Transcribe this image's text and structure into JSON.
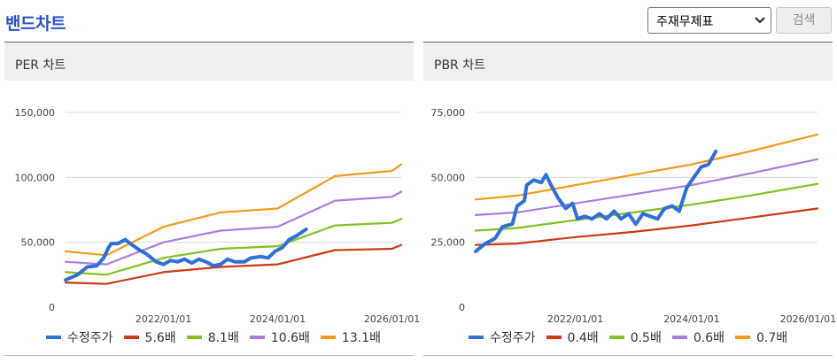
{
  "header": {
    "title": "밴드차트",
    "select_value": "주재무제표",
    "search_label": "검색"
  },
  "panels": [
    {
      "title": "PER 차트"
    },
    {
      "title": "PBR 차트"
    }
  ],
  "colors": {
    "price": "#2f6fd6",
    "band1": "#cc3a0e",
    "band2": "#80c21f",
    "band3": "#a97de0",
    "band4": "#f59a1b",
    "grid": "#dcdcdc",
    "title": "#2a52c8"
  },
  "chart_data": [
    {
      "type": "line",
      "title": "PER 차트",
      "x_ticks": [
        "2022/01/01",
        "2024/01/01",
        "2026/01/01"
      ],
      "y_ticks": [
        "150,000",
        "100,000",
        "50,000",
        "0"
      ],
      "ylim": [
        0,
        150000
      ],
      "xlim": [
        "2020-04-15",
        "2026-03-01"
      ],
      "grid": "horizontal",
      "legend": "bottom",
      "series": [
        {
          "name": "수정주가",
          "color_key": "price",
          "points": [
            [
              "2020-04-15",
              21000
            ],
            [
              "2020-07-01",
              25000
            ],
            [
              "2020-09-01",
              31000
            ],
            [
              "2020-11-01",
              32000
            ],
            [
              "2020-12-15",
              38000
            ],
            [
              "2021-01-15",
              46000
            ],
            [
              "2021-02-01",
              49000
            ],
            [
              "2021-03-15",
              49000
            ],
            [
              "2021-05-01",
              52000
            ],
            [
              "2021-06-15",
              48000
            ],
            [
              "2021-08-01",
              44000
            ],
            [
              "2021-09-15",
              41000
            ],
            [
              "2021-10-15",
              38000
            ],
            [
              "2021-11-15",
              35000
            ],
            [
              "2022-01-01",
              33000
            ],
            [
              "2022-02-15",
              36000
            ],
            [
              "2022-04-01",
              35000
            ],
            [
              "2022-05-15",
              37000
            ],
            [
              "2022-07-01",
              34000
            ],
            [
              "2022-08-15",
              37000
            ],
            [
              "2022-10-01",
              35000
            ],
            [
              "2022-11-15",
              32000
            ],
            [
              "2023-01-01",
              33000
            ],
            [
              "2023-02-15",
              37000
            ],
            [
              "2023-04-01",
              35000
            ],
            [
              "2023-06-01",
              35000
            ],
            [
              "2023-07-15",
              38000
            ],
            [
              "2023-09-15",
              39000
            ],
            [
              "2023-11-01",
              38000
            ],
            [
              "2023-12-15",
              43000
            ],
            [
              "2024-02-01",
              46000
            ],
            [
              "2024-03-15",
              52000
            ],
            [
              "2024-05-01",
              55000
            ],
            [
              "2024-07-01",
              60000
            ]
          ]
        },
        {
          "name": "5.6배",
          "color_key": "band1",
          "points": [
            [
              "2020-04-15",
              19000
            ],
            [
              "2021-01-01",
              18000
            ],
            [
              "2022-01-01",
              27000
            ],
            [
              "2023-01-01",
              31000
            ],
            [
              "2024-01-01",
              33000
            ],
            [
              "2025-01-01",
              44000
            ],
            [
              "2026-01-01",
              45000
            ],
            [
              "2026-03-01",
              48000
            ]
          ]
        },
        {
          "name": "8.1배",
          "color_key": "band2",
          "points": [
            [
              "2020-04-15",
              27000
            ],
            [
              "2021-01-01",
              25000
            ],
            [
              "2022-01-01",
              38000
            ],
            [
              "2023-01-01",
              45000
            ],
            [
              "2024-01-01",
              47000
            ],
            [
              "2025-01-01",
              63000
            ],
            [
              "2026-01-01",
              65000
            ],
            [
              "2026-03-01",
              68000
            ]
          ]
        },
        {
          "name": "10.6배",
          "color_key": "band3",
          "points": [
            [
              "2020-04-15",
              35000
            ],
            [
              "2021-01-01",
              33000
            ],
            [
              "2022-01-01",
              50000
            ],
            [
              "2023-01-01",
              59000
            ],
            [
              "2024-01-01",
              62000
            ],
            [
              "2025-01-01",
              82000
            ],
            [
              "2026-01-01",
              85000
            ],
            [
              "2026-03-01",
              89000
            ]
          ]
        },
        {
          "name": "13.1배",
          "color_key": "band4",
          "points": [
            [
              "2020-04-15",
              43000
            ],
            [
              "2021-01-01",
              40000
            ],
            [
              "2022-01-01",
              62000
            ],
            [
              "2023-01-01",
              73000
            ],
            [
              "2024-01-01",
              76000
            ],
            [
              "2025-01-01",
              101000
            ],
            [
              "2026-01-01",
              105000
            ],
            [
              "2026-03-01",
              110000
            ]
          ]
        }
      ]
    },
    {
      "type": "line",
      "title": "PBR 차트",
      "x_ticks": [
        "2022/01/01",
        "2024/01/01",
        "2026/01/01"
      ],
      "y_ticks": [
        "75,000",
        "50,000",
        "25,000",
        "0"
      ],
      "ylim": [
        0,
        75000
      ],
      "xlim": [
        "2020-04-15",
        "2026-03-01"
      ],
      "grid": "horizontal",
      "legend": "bottom",
      "series": [
        {
          "name": "수정주가",
          "color_key": "price",
          "points": [
            [
              "2020-04-15",
              21500
            ],
            [
              "2020-06-15",
              24500
            ],
            [
              "2020-08-15",
              26500
            ],
            [
              "2020-10-01",
              31000
            ],
            [
              "2020-12-01",
              32000
            ],
            [
              "2021-01-01",
              39000
            ],
            [
              "2021-02-15",
              41000
            ],
            [
              "2021-03-01",
              47000
            ],
            [
              "2021-04-15",
              49000
            ],
            [
              "2021-06-01",
              48000
            ],
            [
              "2021-07-01",
              51000
            ],
            [
              "2021-08-01",
              47000
            ],
            [
              "2021-09-15",
              42000
            ],
            [
              "2021-11-01",
              38000
            ],
            [
              "2021-12-15",
              40000
            ],
            [
              "2022-01-15",
              34000
            ],
            [
              "2022-03-01",
              35000
            ],
            [
              "2022-04-15",
              34000
            ],
            [
              "2022-06-01",
              36000
            ],
            [
              "2022-07-15",
              34000
            ],
            [
              "2022-09-01",
              37000
            ],
            [
              "2022-10-15",
              34000
            ],
            [
              "2022-12-01",
              36000
            ],
            [
              "2023-01-15",
              32000
            ],
            [
              "2023-03-01",
              36000
            ],
            [
              "2023-04-15",
              35000
            ],
            [
              "2023-06-01",
              34000
            ],
            [
              "2023-07-15",
              38000
            ],
            [
              "2023-09-01",
              39000
            ],
            [
              "2023-10-15",
              37000
            ],
            [
              "2023-12-01",
              46000
            ],
            [
              "2024-01-15",
              50000
            ],
            [
              "2024-03-01",
              54000
            ],
            [
              "2024-04-15",
              55000
            ],
            [
              "2024-06-01",
              60000
            ]
          ]
        },
        {
          "name": "0.4배",
          "color_key": "band1",
          "points": [
            [
              "2020-04-15",
              24000
            ],
            [
              "2021-01-01",
              24500
            ],
            [
              "2022-01-01",
              27000
            ],
            [
              "2023-01-01",
              29000
            ],
            [
              "2024-01-01",
              31500
            ],
            [
              "2025-01-01",
              34500
            ],
            [
              "2026-03-01",
              38000
            ]
          ]
        },
        {
          "name": "0.5배",
          "color_key": "band2",
          "points": [
            [
              "2020-04-15",
              29500
            ],
            [
              "2021-01-01",
              30500
            ],
            [
              "2022-01-01",
              33500
            ],
            [
              "2023-01-01",
              36500
            ],
            [
              "2024-01-01",
              39500
            ],
            [
              "2025-01-01",
              43000
            ],
            [
              "2026-03-01",
              47500
            ]
          ]
        },
        {
          "name": "0.6배",
          "color_key": "band3",
          "points": [
            [
              "2020-04-15",
              35500
            ],
            [
              "2021-01-01",
              36500
            ],
            [
              "2022-01-01",
              40000
            ],
            [
              "2023-01-01",
              43500
            ],
            [
              "2024-01-01",
              47000
            ],
            [
              "2025-01-01",
              51500
            ],
            [
              "2026-03-01",
              57000
            ]
          ]
        },
        {
          "name": "0.7배",
          "color_key": "band4",
          "points": [
            [
              "2020-04-15",
              41500
            ],
            [
              "2021-01-01",
              43000
            ],
            [
              "2022-01-01",
              47000
            ],
            [
              "2023-01-01",
              51000
            ],
            [
              "2024-01-01",
              55000
            ],
            [
              "2025-01-01",
              60000
            ],
            [
              "2026-03-01",
              66500
            ]
          ]
        }
      ]
    }
  ]
}
